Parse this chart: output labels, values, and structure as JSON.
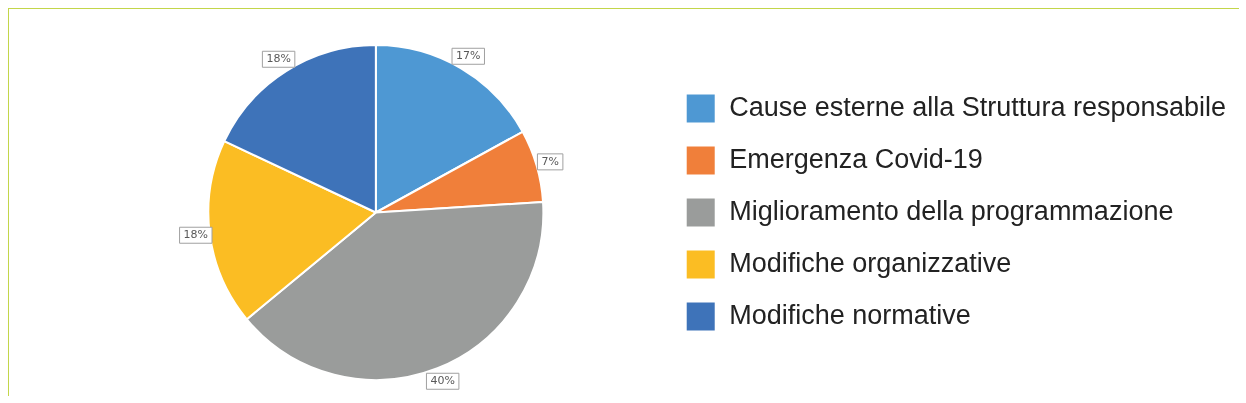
{
  "chart_data": {
    "type": "pie",
    "categories": [
      "Cause esterne alla Struttura responsabile",
      "Emergenza Covid-19",
      "Miglioramento della programmazione",
      "Modifiche organizzative",
      "Modifiche normative"
    ],
    "values": [
      17,
      7,
      40,
      18,
      18
    ],
    "colors": [
      "#4e98d3",
      "#f07f3a",
      "#9a9c9b",
      "#fbbd23",
      "#3e73b9"
    ],
    "value_labels": [
      "17%",
      "7%",
      "40%",
      "18%",
      "18%"
    ],
    "legend": "right"
  }
}
